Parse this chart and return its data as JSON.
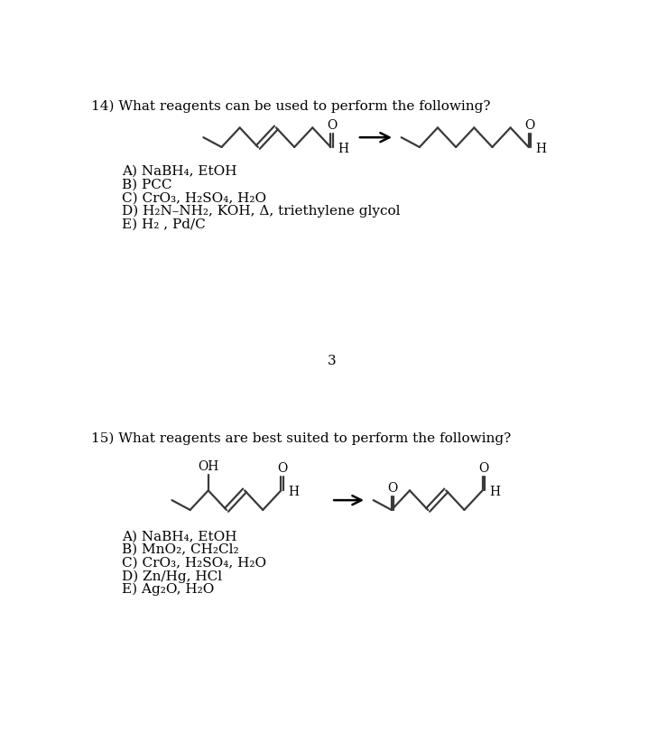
{
  "title14": "14) What reagents can be used to perform the following?",
  "title15": "15) What reagents are best suited to perform the following?",
  "answers14": [
    "A) NaBH₄, EtOH",
    "B) PCC",
    "C) CrO₃, H₂SO₄, H₂O",
    "D) H₂N–NH₂, KOH, Δ, triethylene glycol",
    "E) H₂ , Pd/C"
  ],
  "answers15": [
    "A) NaBH₄, EtOH",
    "B) MnO₂, CH₂Cl₂",
    "C) CrO₃, H₂SO₄, H₂O",
    "D) Zn/Hg, HCl",
    "E) Ag₂O, H₂O"
  ],
  "page_num": "3",
  "bg_color": "#ffffff",
  "text_color": "#000000"
}
